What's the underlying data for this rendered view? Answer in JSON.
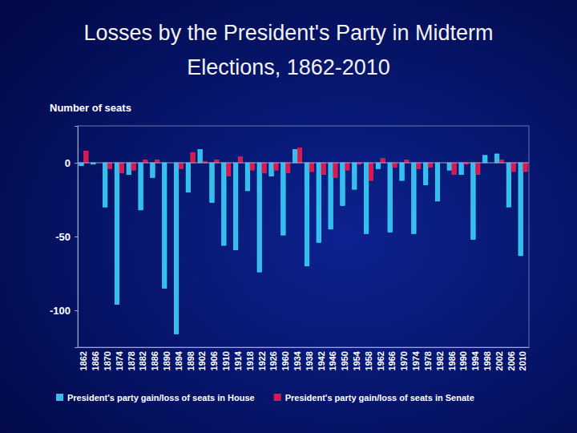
{
  "chart_data": {
    "type": "bar",
    "title": "Losses by the President's Party in Midterm Elections, 1862-2010",
    "y_label": "Number of seats",
    "categories": [
      "1862",
      "1866",
      "1870",
      "1874",
      "1878",
      "1882",
      "1886",
      "1890",
      "1894",
      "1898",
      "1902",
      "1906",
      "1910",
      "1914",
      "1918",
      "1922",
      "1926",
      "1960",
      "1934",
      "1938",
      "1942",
      "1946",
      "1950",
      "1954",
      "1958",
      "1962",
      "1966",
      "1970",
      "1974",
      "1978",
      "1982",
      "1986",
      "1990",
      "1994",
      "1998",
      "2002",
      "2006",
      "2010"
    ],
    "series": [
      {
        "name": "President's party gain/loss of seats in House",
        "color": "#35bdf0",
        "values": [
          -2,
          -1,
          -30,
          -96,
          -8,
          -32,
          -10,
          -85,
          -116,
          -20,
          9,
          -27,
          -56,
          -59,
          -19,
          -74,
          -9,
          -49,
          9,
          -70,
          -54,
          -45,
          -29,
          -18,
          -48,
          -4,
          -47,
          -12,
          -48,
          -15,
          -26,
          -5,
          -8,
          -52,
          5,
          6,
          -30,
          -63
        ]
      },
      {
        "name": "President's party gain/loss of seats in Senate",
        "color": "#d8194e",
        "values": [
          8,
          0,
          -4,
          -7,
          -5,
          2,
          2,
          0,
          -4,
          7,
          1,
          2,
          -9,
          4,
          -5,
          -7,
          -5,
          -7,
          10,
          -6,
          -8,
          -10,
          -5,
          -1,
          -12,
          3,
          -3,
          2,
          -4,
          -3,
          0,
          -8,
          -1,
          -8,
          0,
          2,
          -6,
          -6
        ]
      }
    ],
    "ylim": [
      -125,
      25
    ],
    "yticks": [
      -100,
      -50,
      0
    ],
    "grid": false,
    "legend": "bottom"
  }
}
